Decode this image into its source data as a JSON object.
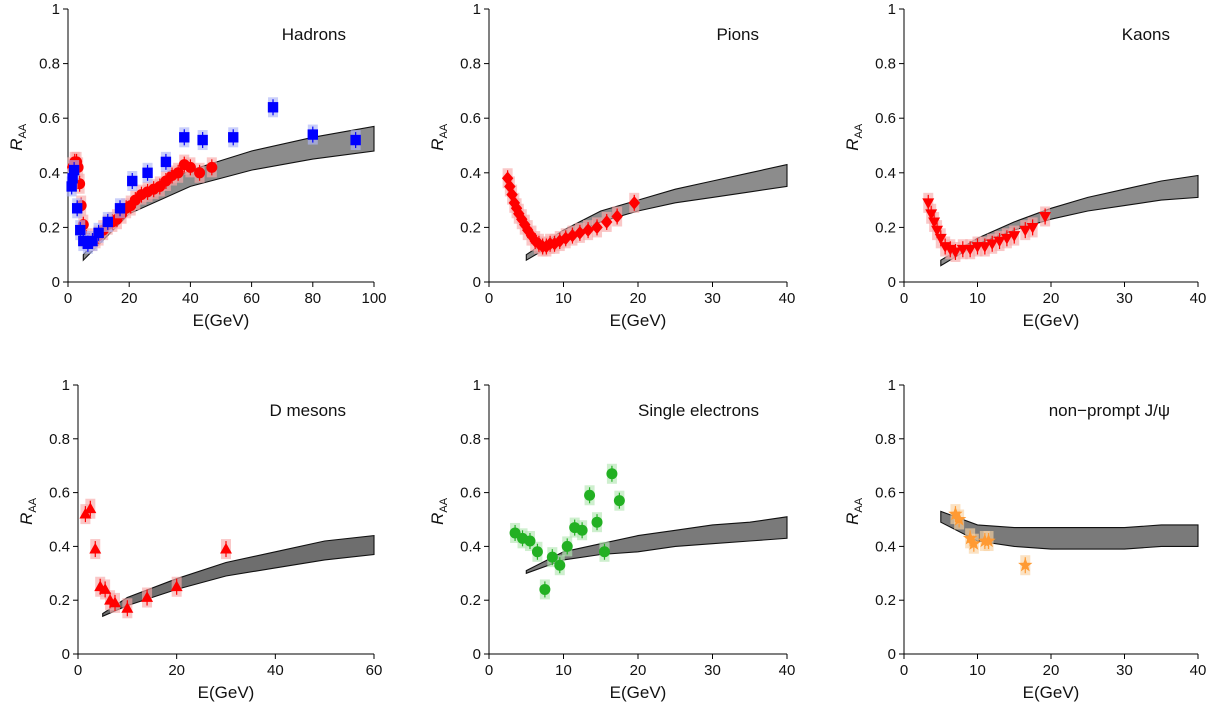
{
  "chart_data": [
    {
      "type": "scatter",
      "title": "Hadrons",
      "xlabel": "E(GeV)",
      "ylabel": "R",
      "ylabel_sub": "AA",
      "xlim": [
        0,
        100
      ],
      "ylim": [
        0,
        1
      ],
      "xticks": [
        "0",
        "20",
        "40",
        "60",
        "80",
        "100"
      ],
      "yticks": [
        "0",
        "0.2",
        "0.4",
        "0.6",
        "0.8",
        "1"
      ],
      "band": {
        "color": "#8c8c8c",
        "x": [
          5,
          20,
          40,
          60,
          80,
          100
        ],
        "lower": [
          0.08,
          0.25,
          0.35,
          0.41,
          0.45,
          0.48
        ],
        "upper": [
          0.1,
          0.29,
          0.41,
          0.48,
          0.53,
          0.57
        ]
      },
      "series": [
        {
          "marker": "circle",
          "color": "#ff0000",
          "boxcolor": "#f7a9a9",
          "points": [
            [
              1.5,
              0.42
            ],
            [
              2.2,
              0.44
            ],
            [
              2.8,
              0.44
            ],
            [
              3.3,
              0.42
            ],
            [
              3.8,
              0.36
            ],
            [
              4.3,
              0.28
            ],
            [
              5,
              0.21
            ],
            [
              6,
              0.16
            ],
            [
              7,
              0.15
            ],
            [
              8,
              0.15
            ],
            [
              9,
              0.16
            ],
            [
              10,
              0.17
            ],
            [
              11.5,
              0.19
            ],
            [
              13,
              0.21
            ],
            [
              14.5,
              0.22
            ],
            [
              16,
              0.23
            ],
            [
              17.5,
              0.25
            ],
            [
              19,
              0.27
            ],
            [
              20.5,
              0.28
            ],
            [
              22,
              0.3
            ],
            [
              24,
              0.32
            ],
            [
              26,
              0.33
            ],
            [
              28,
              0.34
            ],
            [
              30,
              0.35
            ],
            [
              32,
              0.37
            ],
            [
              34,
              0.39
            ],
            [
              36,
              0.4
            ],
            [
              38,
              0.43
            ],
            [
              40,
              0.42
            ],
            [
              43,
              0.4
            ],
            [
              47,
              0.42
            ]
          ]
        },
        {
          "marker": "square",
          "color": "#0000ff",
          "boxcolor": "#aeb6f7",
          "points": [
            [
              1.2,
              0.35
            ],
            [
              1.5,
              0.38
            ],
            [
              2,
              0.41
            ],
            [
              3,
              0.27
            ],
            [
              4,
              0.19
            ],
            [
              5,
              0.15
            ],
            [
              6.5,
              0.14
            ],
            [
              8,
              0.15
            ],
            [
              10,
              0.18
            ],
            [
              13,
              0.22
            ],
            [
              17,
              0.27
            ],
            [
              21,
              0.37
            ],
            [
              26,
              0.4
            ],
            [
              32,
              0.44
            ],
            [
              38,
              0.53
            ],
            [
              44,
              0.52
            ],
            [
              54,
              0.53
            ],
            [
              67,
              0.64
            ],
            [
              80,
              0.54
            ],
            [
              94,
              0.52
            ]
          ]
        }
      ]
    },
    {
      "type": "scatter",
      "title": "Pions",
      "xlabel": "E(GeV)",
      "ylabel": "R",
      "ylabel_sub": "AA",
      "xlim": [
        0,
        40
      ],
      "ylim": [
        0,
        1
      ],
      "xticks": [
        "0",
        "10",
        "20",
        "30",
        "40"
      ],
      "yticks": [
        "0",
        "0.2",
        "0.4",
        "0.6",
        "0.8",
        "1"
      ],
      "band": {
        "color": "#8c8c8c",
        "x": [
          5,
          10,
          15,
          20,
          25,
          30,
          35,
          40
        ],
        "lower": [
          0.08,
          0.16,
          0.22,
          0.26,
          0.29,
          0.31,
          0.33,
          0.35
        ],
        "upper": [
          0.1,
          0.19,
          0.26,
          0.3,
          0.34,
          0.37,
          0.4,
          0.43
        ]
      },
      "series": [
        {
          "marker": "diamond",
          "color": "#ff0000",
          "boxcolor": "#f7a9a9",
          "points": [
            [
              2.5,
              0.38
            ],
            [
              2.8,
              0.35
            ],
            [
              3.1,
              0.32
            ],
            [
              3.4,
              0.29
            ],
            [
              3.7,
              0.27
            ],
            [
              4,
              0.25
            ],
            [
              4.4,
              0.23
            ],
            [
              4.8,
              0.21
            ],
            [
              5.2,
              0.19
            ],
            [
              5.7,
              0.17
            ],
            [
              6.2,
              0.15
            ],
            [
              6.7,
              0.14
            ],
            [
              7.2,
              0.13
            ],
            [
              7.7,
              0.13
            ],
            [
              8.2,
              0.14
            ],
            [
              8.8,
              0.14
            ],
            [
              9.5,
              0.15
            ],
            [
              10.3,
              0.16
            ],
            [
              11.2,
              0.17
            ],
            [
              12.2,
              0.18
            ],
            [
              13.3,
              0.19
            ],
            [
              14.5,
              0.2
            ],
            [
              15.8,
              0.22
            ],
            [
              17.2,
              0.24
            ],
            [
              19.5,
              0.29
            ]
          ]
        }
      ]
    },
    {
      "type": "scatter",
      "title": "Kaons",
      "xlabel": "E(GeV)",
      "ylabel": "R",
      "ylabel_sub": "AA",
      "xlim": [
        0,
        40
      ],
      "ylim": [
        0,
        1
      ],
      "xticks": [
        "0",
        "10",
        "20",
        "30",
        "40"
      ],
      "yticks": [
        "0",
        "0.2",
        "0.4",
        "0.6",
        "0.8",
        "1"
      ],
      "band": {
        "color": "#8c8c8c",
        "x": [
          5,
          10,
          15,
          20,
          25,
          30,
          35,
          40
        ],
        "lower": [
          0.06,
          0.14,
          0.19,
          0.23,
          0.26,
          0.28,
          0.3,
          0.31
        ],
        "upper": [
          0.08,
          0.16,
          0.22,
          0.27,
          0.31,
          0.34,
          0.37,
          0.39
        ]
      },
      "series": [
        {
          "marker": "triangle-down",
          "color": "#ff0000",
          "boxcolor": "#f7a9a9",
          "points": [
            [
              3.3,
              0.29
            ],
            [
              3.7,
              0.25
            ],
            [
              4.1,
              0.22
            ],
            [
              4.5,
              0.19
            ],
            [
              5,
              0.16
            ],
            [
              5.6,
              0.13
            ],
            [
              6.3,
              0.12
            ],
            [
              7,
              0.11
            ],
            [
              8,
              0.12
            ],
            [
              9,
              0.12
            ],
            [
              10,
              0.13
            ],
            [
              11,
              0.13
            ],
            [
              12,
              0.14
            ],
            [
              13,
              0.15
            ],
            [
              14,
              0.16
            ],
            [
              15,
              0.17
            ],
            [
              16.5,
              0.19
            ],
            [
              17.5,
              0.2
            ],
            [
              19.2,
              0.24
            ]
          ]
        }
      ]
    },
    {
      "type": "scatter",
      "title": "D mesons",
      "xlabel": "E(GeV)",
      "ylabel": "R",
      "ylabel_sub": "AA",
      "xlim": [
        0,
        60
      ],
      "ylim": [
        0,
        1
      ],
      "xticks": [
        "0",
        "20",
        "40",
        "60"
      ],
      "yticks": [
        "0",
        "0.2",
        "0.4",
        "0.6",
        "0.8",
        "1"
      ],
      "band": {
        "color": "#6e6e6e",
        "x": [
          5,
          10,
          20,
          30,
          40,
          50,
          60
        ],
        "lower": [
          0.14,
          0.18,
          0.24,
          0.29,
          0.32,
          0.35,
          0.37
        ],
        "upper": [
          0.15,
          0.21,
          0.28,
          0.34,
          0.38,
          0.42,
          0.44
        ]
      },
      "series": [
        {
          "marker": "triangle-up",
          "color": "#ff0000",
          "boxcolor": "#f7a9a9",
          "points": [
            [
              1.5,
              0.52
            ],
            [
              2.5,
              0.54
            ],
            [
              3.5,
              0.39
            ],
            [
              4.5,
              0.25
            ],
            [
              5.5,
              0.24
            ],
            [
              6.5,
              0.2
            ],
            [
              7.5,
              0.19
            ],
            [
              10,
              0.17
            ],
            [
              14,
              0.21
            ],
            [
              20,
              0.25
            ],
            [
              30,
              0.39
            ]
          ]
        }
      ]
    },
    {
      "type": "scatter",
      "title": "Single electrons",
      "xlabel": "E(GeV)",
      "ylabel": "R",
      "ylabel_sub": "AA",
      "xlim": [
        0,
        40
      ],
      "ylim": [
        0,
        1
      ],
      "xticks": [
        "0",
        "10",
        "20",
        "30",
        "40"
      ],
      "yticks": [
        "0",
        "0.2",
        "0.4",
        "0.6",
        "0.8",
        "1"
      ],
      "band": {
        "color": "#7a7a7a",
        "x": [
          5,
          10,
          15,
          20,
          25,
          30,
          35,
          40
        ],
        "lower": [
          0.3,
          0.35,
          0.37,
          0.38,
          0.4,
          0.41,
          0.42,
          0.43
        ],
        "upper": [
          0.31,
          0.38,
          0.41,
          0.44,
          0.46,
          0.48,
          0.49,
          0.51
        ]
      },
      "series": [
        {
          "marker": "circle",
          "color": "#22b022",
          "boxcolor": "#b3e6b3",
          "points": [
            [
              3.5,
              0.45
            ],
            [
              4.5,
              0.43
            ],
            [
              5.5,
              0.42
            ],
            [
              6.5,
              0.38
            ],
            [
              7.5,
              0.24
            ],
            [
              8.5,
              0.36
            ],
            [
              9.5,
              0.33
            ],
            [
              10.5,
              0.4
            ],
            [
              11.5,
              0.47
            ],
            [
              12.5,
              0.46
            ],
            [
              13.5,
              0.59
            ],
            [
              14.5,
              0.49
            ],
            [
              15.5,
              0.38
            ],
            [
              16.5,
              0.67
            ],
            [
              17.5,
              0.57
            ]
          ]
        }
      ]
    },
    {
      "type": "scatter",
      "title": "non−prompt J/ψ",
      "xlabel": "E(GeV)",
      "ylabel": "R",
      "ylabel_sub": "AA",
      "xlim": [
        0,
        40
      ],
      "ylim": [
        0,
        1
      ],
      "xticks": [
        "0",
        "10",
        "20",
        "30",
        "40"
      ],
      "yticks": [
        "0",
        "0.2",
        "0.4",
        "0.6",
        "0.8",
        "1"
      ],
      "band": {
        "color": "#7a7a7a",
        "x": [
          5,
          10,
          15,
          20,
          25,
          30,
          35,
          40
        ],
        "lower": [
          0.49,
          0.42,
          0.4,
          0.39,
          0.39,
          0.39,
          0.4,
          0.4
        ],
        "upper": [
          0.53,
          0.48,
          0.47,
          0.47,
          0.47,
          0.47,
          0.48,
          0.48
        ]
      },
      "series": [
        {
          "marker": "star",
          "color": "#ff9a33",
          "boxcolor": "#f9d2a3",
          "points": [
            [
              7,
              0.52
            ],
            [
              7.5,
              0.5
            ],
            [
              9,
              0.43
            ],
            [
              9.5,
              0.41
            ],
            [
              11,
              0.42
            ],
            [
              11.5,
              0.42
            ],
            [
              16.5,
              0.33
            ]
          ]
        }
      ]
    }
  ]
}
